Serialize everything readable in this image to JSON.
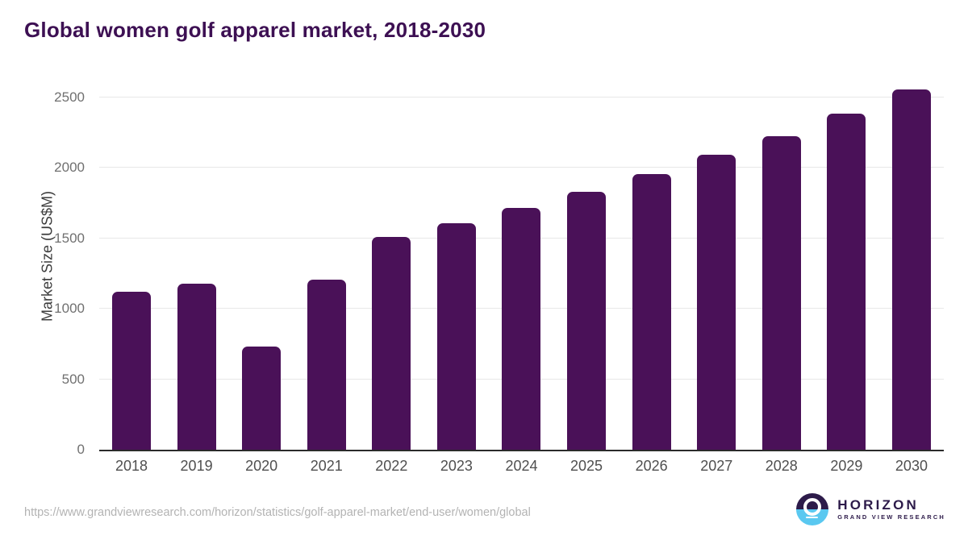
{
  "title": "Global women golf apparel market, 2018-2030",
  "chart_data": {
    "type": "bar",
    "title": "Global women golf apparel market, 2018-2030",
    "categories": [
      "2018",
      "2019",
      "2020",
      "2021",
      "2022",
      "2023",
      "2024",
      "2025",
      "2026",
      "2027",
      "2028",
      "2029",
      "2030"
    ],
    "values": [
      1123,
      1176,
      733,
      1209,
      1511,
      1610,
      1717,
      1832,
      1958,
      2096,
      2228,
      2388,
      2558
    ],
    "xlabel": "",
    "ylabel": "Market Size (US$M)",
    "ylim": [
      0,
      2600
    ],
    "yticks": [
      0,
      500,
      1000,
      1500,
      2000,
      2500
    ],
    "grid": true,
    "legend": "none",
    "bar_color": "#4a1158"
  },
  "colors": {
    "title": "#3d1053",
    "bar": "#4a1158",
    "gridline": "#e8e8e8",
    "axis_line": "#2b2b2b",
    "x_tick_label": "#4f4f4f",
    "y_tick_label": "#707070",
    "source_text": "#b3b3b3",
    "logo_dark": "#2d1b4a",
    "logo_blue": "#5ac8f0",
    "background": "#ffffff"
  },
  "footer": {
    "source_url": "https://www.grandviewresearch.com/horizon/statistics/golf-apparel-market/end-user/women/global",
    "logo": {
      "name": "HORIZON",
      "subtitle": "GRAND VIEW RESEARCH"
    }
  }
}
